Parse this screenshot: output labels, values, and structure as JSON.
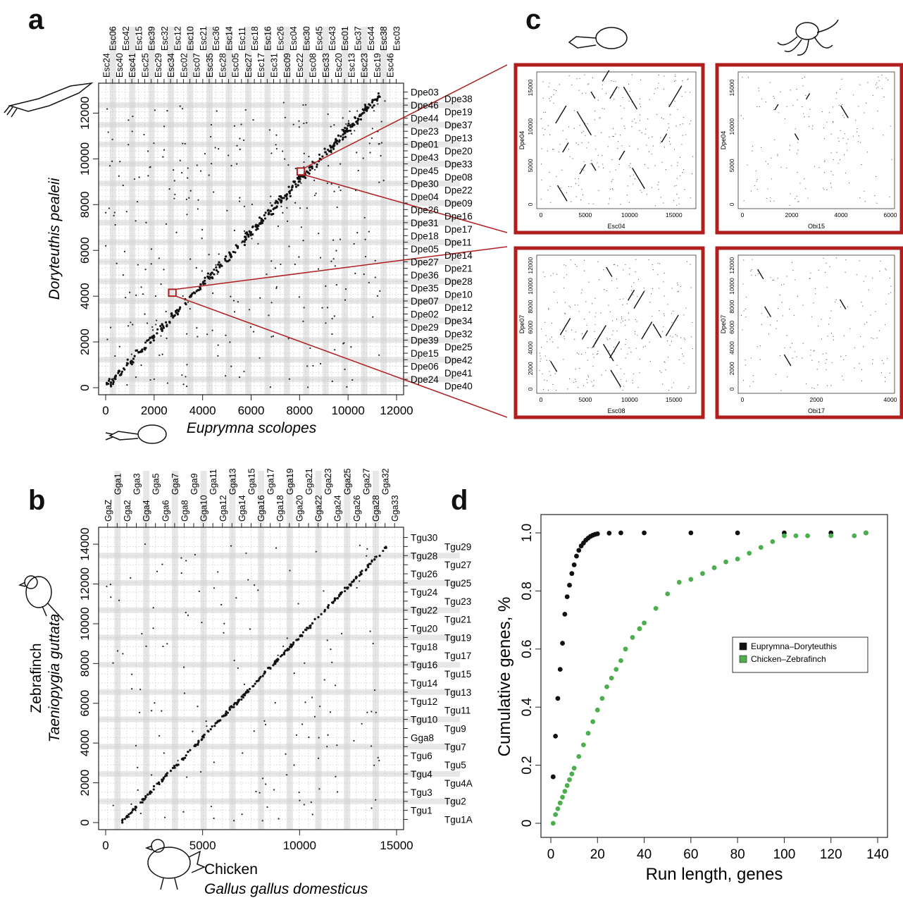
{
  "panels": {
    "a": "a",
    "b": "b",
    "c": "c",
    "d": "d"
  },
  "colors": {
    "frame": "#b01e1e",
    "zoom_line": "#b01e1e",
    "band": "#d4d4d4",
    "black_series": "#111111",
    "green_series": "#4cae4c"
  },
  "chart_data": [
    {
      "id": "a",
      "type": "scatter",
      "xlabel": "Euprymna scolopes",
      "ylabel": "Doryteuthis pealeii",
      "xlim": [
        0,
        12000
      ],
      "ylim": [
        0,
        13000
      ],
      "xticks": [
        "0",
        "2000",
        "4000",
        "6000",
        "8000",
        "10000",
        "12000"
      ],
      "yticks": [
        "0",
        "2000",
        "4000",
        "6000",
        "8000",
        "10000",
        "12000"
      ],
      "top_labels": [
        "Esc24",
        "Esc06",
        "Esc40",
        "Esc42",
        "Esc41",
        "Esc15",
        "Esc25",
        "Esc39",
        "Esc29",
        "Esc32",
        "Esc34",
        "Esc12",
        "Esc02",
        "Esc10",
        "Esc07",
        "Esc21",
        "Esc35",
        "Esc36",
        "Esc28",
        "Esc14",
        "Esc05",
        "Esc11",
        "Esc27",
        "Esc18",
        "Esc17",
        "Esc16",
        "Esc31",
        "Esc26",
        "Esc09",
        "Esc04",
        "Esc22",
        "Esc30",
        "Esc08",
        "Esc45",
        "Esc33",
        "Esc43",
        "Esc20",
        "Esc01",
        "Esc13",
        "Esc37",
        "Esc23",
        "Esc44",
        "Esc19",
        "Esc38",
        "Esc46",
        "Esc03"
      ],
      "right_labels": [
        "Dpe03",
        "Dpe38",
        "Dpe46",
        "Dpe19",
        "Dpe44",
        "Dpe37",
        "Dpe23",
        "Dpe13",
        "Dpe01",
        "Dpe20",
        "Dpe43",
        "Dpe33",
        "Dpe45",
        "Dpe08",
        "Dpe30",
        "Dpe22",
        "Dpe04",
        "Dpe09",
        "Dpe26",
        "Dpe16",
        "Dpe31",
        "Dpe17",
        "Dpe18",
        "Dpe11",
        "Dpe05",
        "Dpe14",
        "Dpe27",
        "Dpe21",
        "Dpe36",
        "Dpe28",
        "Dpe35",
        "Dpe10",
        "Dpe07",
        "Dpe12",
        "Dpe02",
        "Dpe34",
        "Dpe29",
        "Dpe32",
        "Dpe39",
        "Dpe25",
        "Dpe15",
        "Dpe42",
        "Dpe06",
        "Dpe41",
        "Dpe24",
        "Dpe40"
      ],
      "diagonal": [
        [
          100,
          100
        ],
        [
          11400,
          12900
        ]
      ],
      "zoom_boxes": [
        {
          "x": [
            7900,
            8200
          ],
          "y": [
            9300,
            9600
          ],
          "target": "Esc04 vs Dpe04"
        },
        {
          "x": [
            2600,
            2900
          ],
          "y": [
            4000,
            4300
          ],
          "target": "Esc08 vs Dpe07"
        }
      ]
    },
    {
      "id": "b",
      "type": "scatter",
      "xlabel": "Chicken",
      "xlabel2": "Gallus gallus domesticus",
      "ylabel": "Taeniopygia guttata",
      "ylabel2": "Zebrafinch",
      "xlim": [
        0,
        15000
      ],
      "ylim": [
        0,
        14500
      ],
      "xticks": [
        "0",
        "5000",
        "10000",
        "15000"
      ],
      "yticks": [
        "0",
        "2000",
        "4000",
        "6000",
        "8000",
        "10000",
        "12000",
        "14000"
      ],
      "top_labels": [
        "GgaZ",
        "Gga1",
        "Gga2",
        "Gga3",
        "Gga4",
        "Gga5",
        "Gga6",
        "Gga7",
        "Gga8",
        "Gga9",
        "Gga10",
        "Gga11",
        "Gga12",
        "Gga13",
        "Gga14",
        "Gga15",
        "Gga16",
        "Gga17",
        "Gga18",
        "Gga19",
        "Gga20",
        "Gga21",
        "Gga22",
        "Gga23",
        "Gga24",
        "Gga25",
        "Gga26",
        "Gga27",
        "Gga28",
        "Gga32",
        "Gga33"
      ],
      "right_labels": [
        "Tgu30",
        "Tgu29",
        "Tgu28",
        "Tgu27",
        "Tgu26",
        "Tgu25",
        "Tgu24",
        "Tgu23",
        "Tgu22",
        "Tgu21",
        "Tgu20",
        "Tgu19",
        "Tgu18",
        "Tgu17",
        "Tgu16",
        "Tgu15",
        "Tgu14",
        "Tgu13",
        "Tgu12",
        "Tgu11",
        "Tgu10",
        "Tgu9",
        "Gga8",
        "Tgu7",
        "Tgu6",
        "Tgu5",
        "Tgu4",
        "Tgu4A",
        "Tgu3",
        "Tgu2",
        "Tgu1",
        "Tgu1A"
      ],
      "diagonal": [
        [
          800,
          0
        ],
        [
          14500,
          13900
        ]
      ]
    },
    {
      "id": "c",
      "type": "scatter",
      "subplots": [
        {
          "xlabel": "Esc04",
          "ylabel": "Dpe04",
          "xticks": [
            "0",
            "5000",
            "10000",
            "15000"
          ],
          "yticks": [
            "0",
            "5000",
            "10000",
            "15000"
          ]
        },
        {
          "xlabel": "Obi15",
          "ylabel": "Dpe04",
          "xticks": [
            "0",
            "2000",
            "4000",
            "6000"
          ],
          "yticks": [
            "0",
            "5000",
            "10000",
            "15000"
          ]
        },
        {
          "xlabel": "Esc08",
          "ylabel": "Dpe07",
          "xticks": [
            "0",
            "5000",
            "10000",
            "15000"
          ],
          "yticks": [
            "0",
            "2000",
            "4000",
            "6000",
            "8000",
            "10000",
            "12000"
          ]
        },
        {
          "xlabel": "Obi17",
          "ylabel": "Dpe07",
          "xticks": [
            "0",
            "2000",
            "4000"
          ],
          "yticks": [
            "0",
            "2000",
            "4000",
            "6000",
            "8000",
            "10000",
            "12000"
          ]
        }
      ]
    },
    {
      "id": "d",
      "type": "scatter",
      "xlabel": "Run length, genes",
      "ylabel": "Cumulative genes, %",
      "xlim": [
        0,
        140
      ],
      "ylim": [
        0,
        1.0
      ],
      "xticks": [
        "0",
        "20",
        "40",
        "60",
        "80",
        "100",
        "120",
        "140"
      ],
      "yticks": [
        "0",
        "0.2",
        "0.4",
        "0.6",
        "0.8",
        "1.0"
      ],
      "legend_position": "right",
      "series": [
        {
          "name": "Euprymna–Doryteuthis",
          "color": "#111111",
          "x": [
            1,
            2,
            3,
            4,
            5,
            6,
            7,
            8,
            9,
            10,
            11,
            12,
            13,
            14,
            15,
            16,
            17,
            18,
            19,
            20,
            25,
            30,
            40,
            60,
            80,
            100,
            120,
            135
          ],
          "y": [
            0.16,
            0.3,
            0.43,
            0.53,
            0.62,
            0.72,
            0.78,
            0.82,
            0.86,
            0.89,
            0.92,
            0.94,
            0.955,
            0.965,
            0.975,
            0.982,
            0.988,
            0.992,
            0.995,
            0.997,
            0.999,
            1.0,
            1.0,
            1.0,
            1.0,
            1.0,
            1.0,
            1.0
          ]
        },
        {
          "name": "Chicken–Zebrafinch",
          "color": "#4cae4c",
          "x": [
            1,
            2,
            3,
            4,
            5,
            6,
            7,
            8,
            9,
            10,
            12,
            14,
            16,
            18,
            20,
            22,
            24,
            26,
            28,
            30,
            32,
            35,
            38,
            40,
            45,
            50,
            55,
            60,
            65,
            70,
            75,
            80,
            85,
            90,
            95,
            100,
            105,
            110,
            120,
            130,
            135
          ],
          "y": [
            0.0,
            0.03,
            0.05,
            0.07,
            0.09,
            0.11,
            0.13,
            0.15,
            0.17,
            0.19,
            0.23,
            0.27,
            0.31,
            0.35,
            0.39,
            0.43,
            0.47,
            0.5,
            0.53,
            0.56,
            0.6,
            0.64,
            0.67,
            0.69,
            0.74,
            0.79,
            0.83,
            0.84,
            0.86,
            0.88,
            0.9,
            0.91,
            0.93,
            0.95,
            0.97,
            0.99,
            0.99,
            0.99,
            0.99,
            0.99,
            1.0
          ]
        }
      ]
    }
  ]
}
